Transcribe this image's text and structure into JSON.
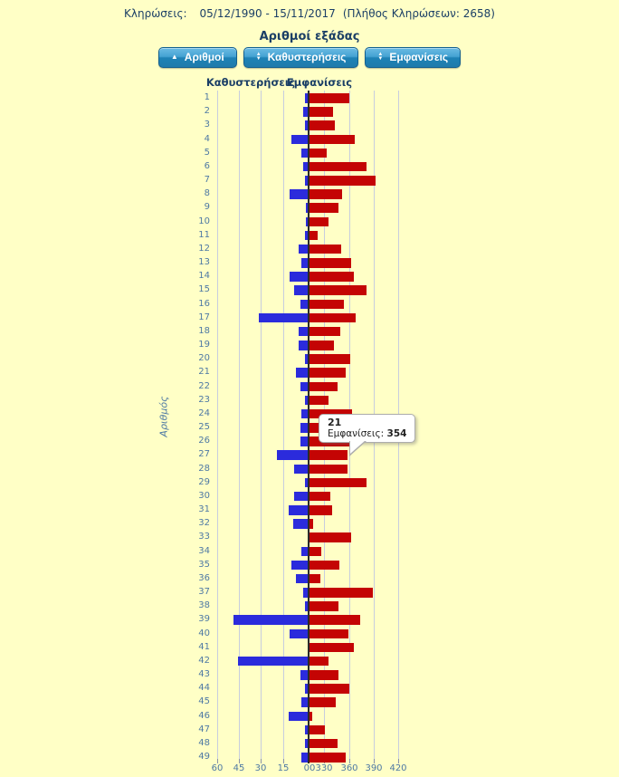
{
  "header": {
    "label": "Κληρώσεις:",
    "range": "05/12/1990 - 15/11/2017",
    "count_note": "(Πλήθος Κληρώσεων: 2658)"
  },
  "title": "Αριθμοί εξάδας",
  "buttons": [
    {
      "icon": "sort-asc-icon",
      "glyph_up": "▲",
      "label": "Αριθμοί"
    },
    {
      "icon": "sort-both-icon",
      "glyph_up": "▲",
      "glyph_down": "▼",
      "label": "Καθυστερήσεις"
    },
    {
      "icon": "sort-both-icon",
      "glyph_up": "▲",
      "glyph_down": "▼",
      "label": "Εμφανίσεις"
    }
  ],
  "column_headers": {
    "left": "Καθυστερήσεις",
    "right": "Εμφανίσεις"
  },
  "tooltip": {
    "number": "21",
    "label": "Εμφανίσεις:",
    "value": "354"
  },
  "colors": {
    "background": "#FFFFC6",
    "delay_bar": "#2B2BDC",
    "appearance_bar": "#C40404",
    "navy_text": "#1B3F66",
    "steel_text": "#4E79A4",
    "button_blue": "#1E82B6",
    "gridline": "#C7CDDE"
  },
  "chart_data": {
    "type": "bar",
    "orientation": "horizontal-diverging",
    "title": "Αριθμοί εξάδας",
    "ylabel": "Αριθμός",
    "grid": true,
    "categories": [
      1,
      2,
      3,
      4,
      5,
      6,
      7,
      8,
      9,
      10,
      11,
      12,
      13,
      14,
      15,
      16,
      17,
      18,
      19,
      20,
      21,
      22,
      23,
      24,
      25,
      26,
      27,
      28,
      29,
      30,
      31,
      32,
      33,
      34,
      35,
      36,
      37,
      38,
      39,
      40,
      41,
      42,
      43,
      44,
      45,
      46,
      47,
      48,
      49
    ],
    "series": [
      {
        "name": "Καθυστερήσεις",
        "direction": "left",
        "values": [
          2,
          3,
          2,
          11,
          4,
          3,
          2,
          12,
          1,
          1,
          2,
          6,
          4,
          12,
          9,
          5,
          33,
          6,
          6,
          2,
          8,
          5,
          2,
          4,
          5,
          5,
          21,
          9,
          2,
          9,
          13,
          10,
          0,
          4,
          11,
          8,
          3,
          2,
          50,
          12,
          0,
          47,
          5,
          2,
          4,
          13,
          2,
          2,
          4
        ]
      },
      {
        "name": "Εμφανίσεις",
        "direction": "right",
        "values": [
          359,
          339,
          341,
          365,
          331,
          380,
          391,
          350,
          345,
          333,
          320,
          349,
          361,
          364,
          380,
          352,
          367,
          348,
          340,
          360,
          354,
          344,
          333,
          362,
          338,
          359,
          357,
          357,
          380,
          335,
          338,
          314,
          361,
          324,
          347,
          323,
          388,
          346,
          372,
          358,
          364,
          333,
          345,
          359,
          342,
          313,
          329,
          344,
          354
        ]
      }
    ],
    "x_axis": {
      "left_tick_labels": [
        "60",
        "45",
        "30",
        "15"
      ],
      "center_label": "00",
      "right_tick_labels": [
        "330",
        "360",
        "390",
        "420"
      ],
      "left_axis_range": [
        0,
        60
      ],
      "right_axis_range": [
        310,
        420
      ]
    }
  }
}
